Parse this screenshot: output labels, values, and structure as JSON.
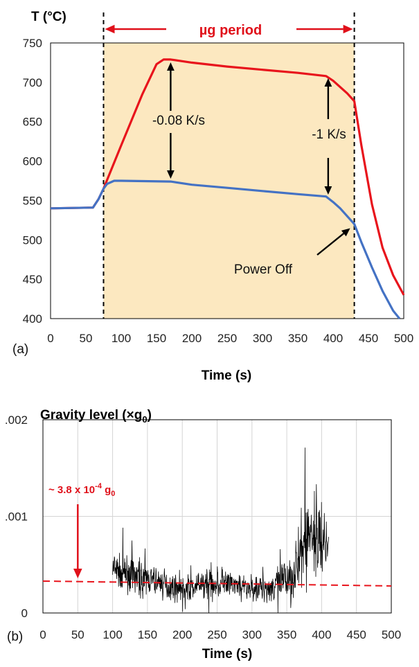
{
  "chart_data": [
    {
      "panel": "(a)",
      "type": "line",
      "ylabel": "T (°C)",
      "xlabel": "Time (s)",
      "xlim": [
        0,
        500
      ],
      "ylim": [
        400,
        750
      ],
      "x_ticks": [
        "0",
        "50",
        "100",
        "150",
        "200",
        "250",
        "300",
        "350",
        "400",
        "450",
        "500"
      ],
      "y_ticks": [
        "400",
        "450",
        "500",
        "550",
        "600",
        "650",
        "700",
        "750"
      ],
      "grid": false,
      "shaded_period": {
        "label": "µg period",
        "x_start": 75,
        "x_end": 430,
        "color": "#fce8c0"
      },
      "series": [
        {
          "color": "#e8141c",
          "x": [
            0,
            60,
            68,
            75,
            100,
            130,
            150,
            160,
            170,
            200,
            250,
            300,
            350,
            390,
            400,
            410,
            420,
            430,
            440,
            455,
            470,
            485,
            500
          ],
          "y": [
            540,
            541,
            552,
            565,
            620,
            685,
            723,
            729,
            729,
            725,
            720,
            716,
            712,
            708,
            702,
            694,
            686,
            676,
            620,
            545,
            490,
            455,
            430
          ]
        },
        {
          "color": "#4472c4",
          "x": [
            0,
            60,
            68,
            75,
            80,
            90,
            100,
            170,
            200,
            250,
            300,
            350,
            390,
            400,
            410,
            420,
            430,
            440,
            455,
            470,
            485,
            494
          ],
          "y": [
            540,
            541,
            552,
            565,
            571,
            575,
            575,
            574,
            570,
            566,
            562,
            558,
            555,
            548,
            540,
            530,
            520,
            497,
            465,
            435,
            410,
            400
          ]
        }
      ],
      "annotations": [
        {
          "text": "-0.08 K/s",
          "at_x": 170
        },
        {
          "text": "-1 K/s",
          "at_x": 393
        },
        {
          "text": "Power Off",
          "points_to_x": 430,
          "points_to_y": 520
        }
      ]
    },
    {
      "panel": "(b)",
      "type": "line",
      "title": "Gravity level (×g0)",
      "xlabel": "Time (s)",
      "xlim": [
        0,
        500
      ],
      "ylim": [
        0,
        0.002
      ],
      "x_ticks": [
        "0",
        "50",
        "100",
        "150",
        "200",
        "250",
        "300",
        "350",
        "400",
        "450",
        "500"
      ],
      "y_ticks": [
        "0",
        ".001",
        ".002"
      ],
      "grid": true,
      "series": [
        {
          "color": "#000000",
          "x_range": [
            100,
            410
          ],
          "points": 760,
          "seed": 7,
          "envelope_x": [
            100,
            110,
            130,
            150,
            170,
            180,
            200,
            220,
            240,
            260,
            280,
            300,
            320,
            340,
            360,
            370,
            380,
            390,
            400,
            410
          ],
          "mean_y": [
            0.00045,
            0.00042,
            0.00038,
            0.00035,
            0.0003,
            0.00028,
            0.00025,
            0.00027,
            0.00032,
            0.0003,
            0.00028,
            0.00025,
            0.00026,
            0.0003,
            0.0004,
            0.00058,
            0.0008,
            0.00082,
            0.00075,
            0.0007
          ],
          "spread": [
            0.00022,
            0.0002,
            0.0002,
            0.00018,
            0.00016,
            0.00015,
            0.00014,
            0.00015,
            0.0002,
            0.00018,
            0.00015,
            0.00014,
            0.00016,
            0.00022,
            0.0003,
            0.0004,
            0.00058,
            0.00055,
            0.0004,
            0.0003
          ]
        }
      ],
      "reference_line": {
        "color": "#e8141c",
        "style": "dashed",
        "x": [
          0,
          500
        ],
        "y": [
          0.00033,
          0.00028
        ]
      },
      "annotation": {
        "text_prefix": "~ 3.8 x 10",
        "exponent": "-4",
        "unit_base": "g",
        "unit_sub": "0",
        "arrow_x": 50
      }
    }
  ]
}
